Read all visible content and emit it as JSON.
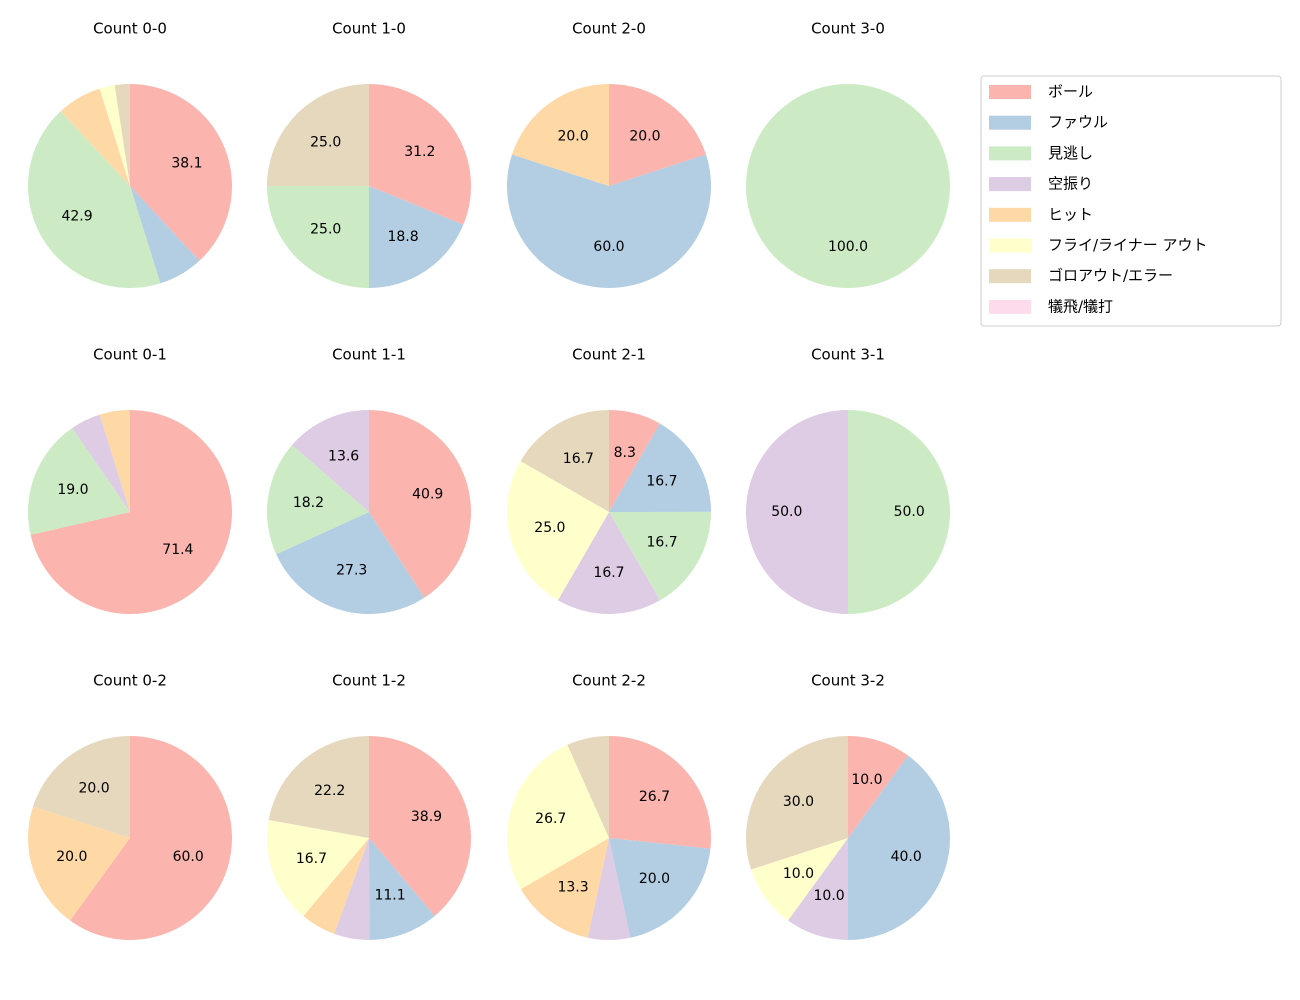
{
  "legend": {
    "labels": [
      "ボール",
      "ファウル",
      "見逃し",
      "空振り",
      "ヒット",
      "フライ/ライナー アウト",
      "ゴロアウト/エラー",
      "犠飛/犠打"
    ],
    "colors": [
      "#fbb4ae",
      "#b3cde3",
      "#ccebc5",
      "#decbe4",
      "#fed9a6",
      "#ffffcc",
      "#e5d8bd",
      "#fddaec"
    ],
    "loc": "upper right"
  },
  "chart_data": [
    {
      "type": "pie",
      "title": "Count 0-0",
      "values": [
        38.1,
        7.1,
        42.9,
        0,
        7.1,
        2.4,
        2.4,
        0
      ],
      "value_labels": [
        "38.1",
        null,
        "42.9",
        null,
        null,
        null,
        null,
        null
      ]
    },
    {
      "type": "pie",
      "title": "Count 1-0",
      "values": [
        31.2,
        18.8,
        25.0,
        0,
        0,
        0,
        25.0,
        0
      ],
      "value_labels": [
        "31.2",
        "18.8",
        "25.0",
        null,
        null,
        null,
        "25.0",
        null
      ]
    },
    {
      "type": "pie",
      "title": "Count 2-0",
      "values": [
        20.0,
        60.0,
        0,
        0,
        20.0,
        0,
        0,
        0
      ],
      "value_labels": [
        "20.0",
        "60.0",
        null,
        null,
        "20.0",
        null,
        null,
        null
      ]
    },
    {
      "type": "pie",
      "title": "Count 3-0",
      "values": [
        0,
        0,
        100.0,
        0,
        0,
        0,
        0,
        0
      ],
      "value_labels": [
        null,
        null,
        "100.0",
        null,
        null,
        null,
        null,
        null
      ]
    },
    {
      "type": "pie",
      "title": "Count 0-1",
      "values": [
        71.4,
        0,
        19.0,
        4.8,
        4.8,
        0,
        0,
        0
      ],
      "value_labels": [
        "71.4",
        null,
        "19.0",
        null,
        null,
        null,
        null,
        null
      ]
    },
    {
      "type": "pie",
      "title": "Count 1-1",
      "values": [
        40.9,
        27.3,
        18.2,
        13.6,
        0,
        0,
        0,
        0
      ],
      "value_labels": [
        "40.9",
        "27.3",
        "18.2",
        "13.6",
        null,
        null,
        null,
        null
      ]
    },
    {
      "type": "pie",
      "title": "Count 2-1",
      "values": [
        8.3,
        16.7,
        16.7,
        16.7,
        0,
        25.0,
        16.7,
        0
      ],
      "value_labels": [
        "8.3",
        "16.7",
        "16.7",
        "16.7",
        null,
        "25.0",
        "16.7",
        null
      ]
    },
    {
      "type": "pie",
      "title": "Count 3-1",
      "values": [
        0,
        0,
        50.0,
        50.0,
        0,
        0,
        0,
        0
      ],
      "value_labels": [
        null,
        null,
        "50.0",
        "50.0",
        null,
        null,
        null,
        null
      ]
    },
    {
      "type": "pie",
      "title": "Count 0-2",
      "values": [
        60.0,
        0,
        0,
        0,
        20.0,
        0,
        20.0,
        0
      ],
      "value_labels": [
        "60.0",
        null,
        null,
        null,
        "20.0",
        null,
        "20.0",
        null
      ]
    },
    {
      "type": "pie",
      "title": "Count 1-2",
      "values": [
        38.9,
        11.1,
        0,
        5.6,
        5.6,
        16.7,
        22.2,
        0
      ],
      "value_labels": [
        "38.9",
        "11.1",
        null,
        null,
        null,
        "16.7",
        "22.2",
        null
      ]
    },
    {
      "type": "pie",
      "title": "Count 2-2",
      "values": [
        26.7,
        20.0,
        0,
        6.7,
        13.3,
        26.7,
        6.7,
        0
      ],
      "value_labels": [
        "26.7",
        "20.0",
        null,
        null,
        "13.3",
        "26.7",
        null,
        null
      ]
    },
    {
      "type": "pie",
      "title": "Count 3-2",
      "values": [
        10.0,
        40.0,
        0,
        10.0,
        0,
        10.0,
        30.0,
        0
      ],
      "value_labels": [
        "10.0",
        "40.0",
        null,
        "10.0",
        null,
        "10.0",
        "30.0",
        null
      ]
    }
  ]
}
